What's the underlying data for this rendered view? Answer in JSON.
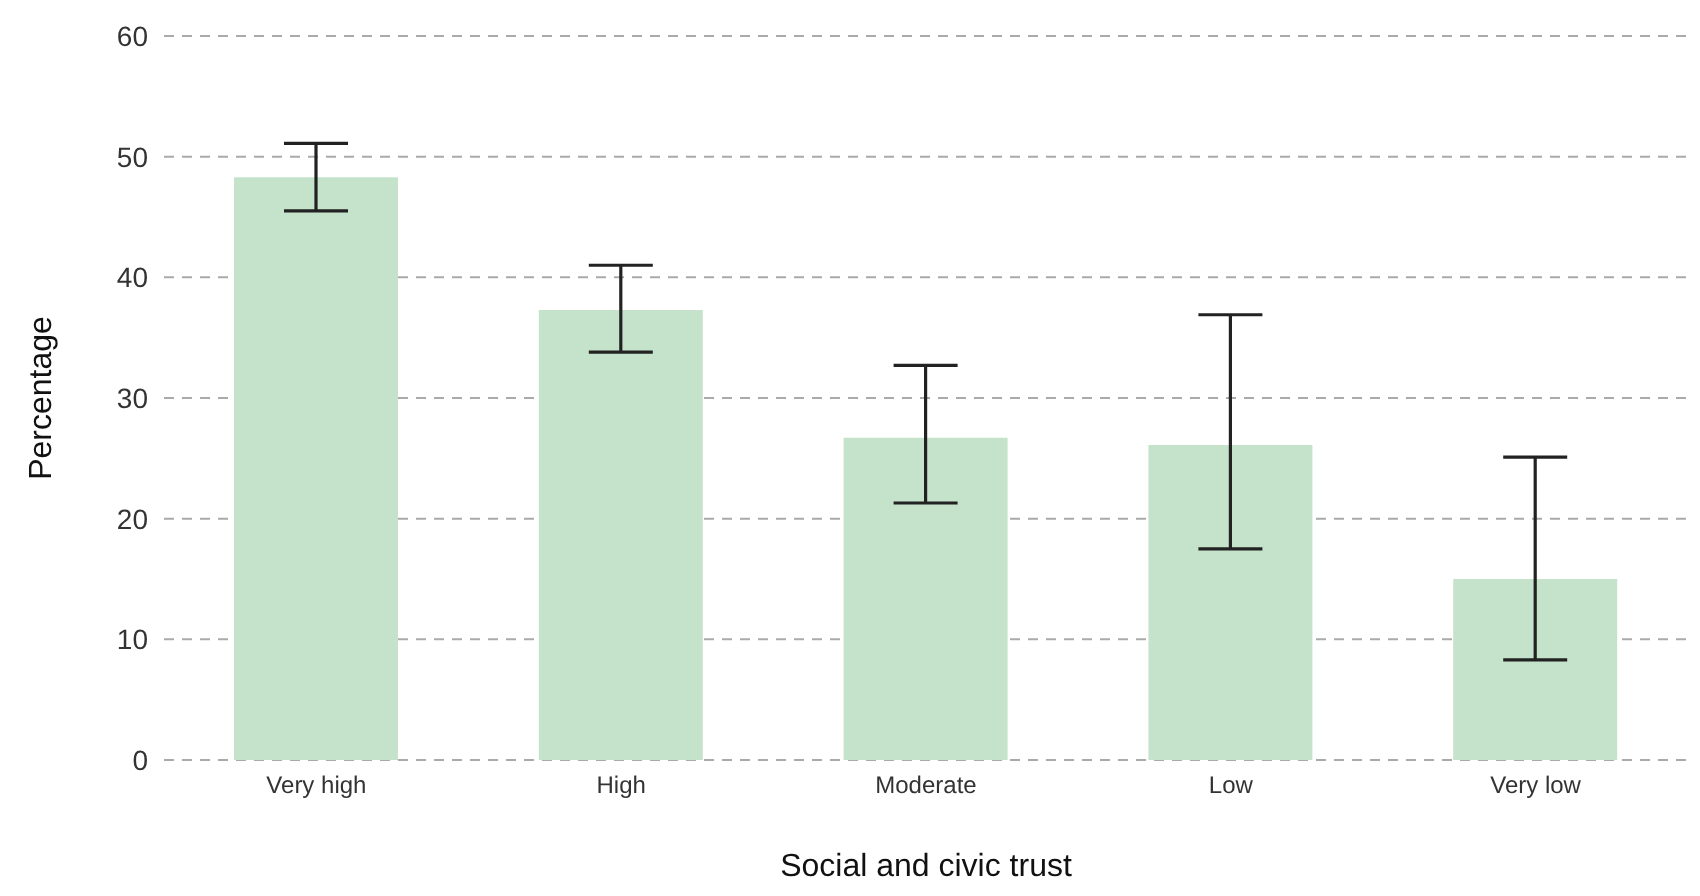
{
  "chart_data": {
    "type": "bar",
    "xlabel": "Social and civic trust",
    "ylabel": "Percentage",
    "categories": [
      "Very high",
      "High",
      "Moderate",
      "Low",
      "Very low"
    ],
    "values": [
      48.3,
      37.3,
      26.7,
      26.1,
      15.0
    ],
    "errors": [
      [
        45.5,
        51.1
      ],
      [
        33.8,
        41.0
      ],
      [
        21.3,
        32.7
      ],
      [
        17.5,
        36.9
      ],
      [
        8.3,
        25.1
      ]
    ],
    "color": "#c5e3cb",
    "ylim": [
      0,
      60
    ],
    "yticks": [
      0,
      10,
      20,
      30,
      40,
      50,
      60
    ],
    "grid": "y"
  }
}
